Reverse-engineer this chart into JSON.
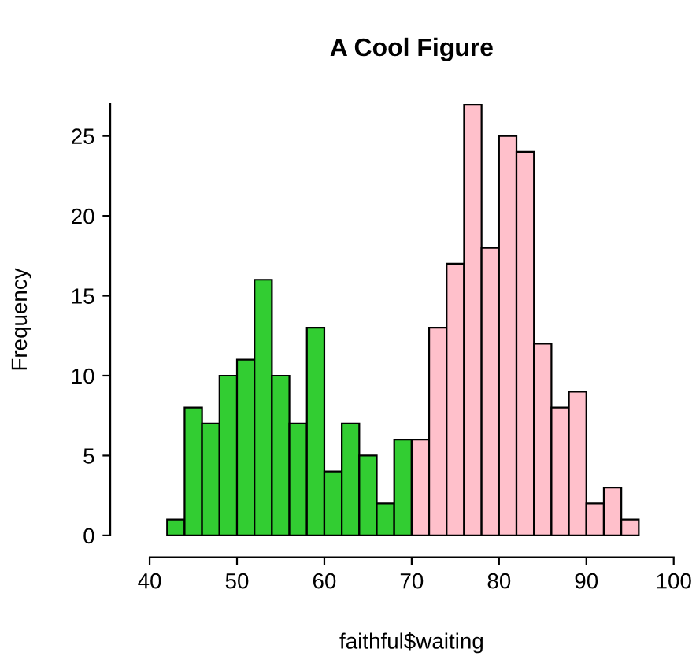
{
  "chart_data": {
    "type": "histogram",
    "title": "A Cool Figure",
    "xlabel": "faithful$waiting",
    "ylabel": "Frequency",
    "bins": [
      42,
      44,
      46,
      48,
      50,
      52,
      54,
      56,
      58,
      60,
      62,
      64,
      66,
      68,
      70,
      72,
      74,
      76,
      78,
      80,
      82,
      84,
      86,
      88,
      90,
      92,
      94,
      96
    ],
    "values": [
      1,
      8,
      7,
      10,
      11,
      16,
      10,
      7,
      13,
      4,
      7,
      5,
      2,
      6,
      6,
      13,
      17,
      27,
      18,
      25,
      24,
      12,
      8,
      9,
      2,
      3,
      1
    ],
    "colors": [
      "#32cd32",
      "#32cd32",
      "#32cd32",
      "#32cd32",
      "#32cd32",
      "#32cd32",
      "#32cd32",
      "#32cd32",
      "#32cd32",
      "#32cd32",
      "#32cd32",
      "#32cd32",
      "#32cd32",
      "#32cd32",
      "#ffc0cb",
      "#ffc0cb",
      "#ffc0cb",
      "#ffc0cb",
      "#ffc0cb",
      "#ffc0cb",
      "#ffc0cb",
      "#ffc0cb",
      "#ffc0cb",
      "#ffc0cb",
      "#ffc0cb",
      "#ffc0cb",
      "#ffc0cb"
    ],
    "xlim": [
      40,
      100
    ],
    "ylim": [
      0,
      27
    ],
    "xticks": [
      40,
      50,
      60,
      70,
      80,
      90,
      100
    ],
    "yticks": [
      0,
      5,
      10,
      15,
      20,
      25
    ],
    "grid": false
  }
}
